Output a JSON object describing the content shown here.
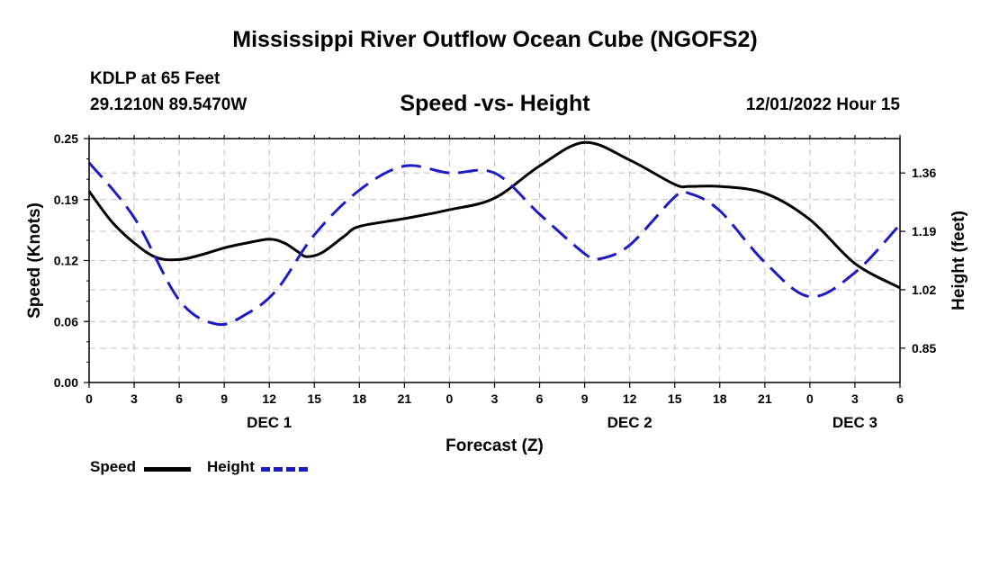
{
  "header": {
    "title": "Mississippi River Outflow Ocean Cube (NGOFS2)",
    "station": "KDLP at 65 Feet",
    "coords": "29.1210N  89.5470W",
    "subtitle": "Speed -vs- Height",
    "datetime": "12/01/2022 Hour 15"
  },
  "footer": {
    "title": "Mississippi River Outflow Ocean Cube (NGOFS2)"
  },
  "legend": {
    "speed_label": "Speed",
    "height_label": "Height"
  },
  "chart_data": {
    "type": "line",
    "xlabel": "Forecast (Z)",
    "ylabel_left": "Speed (Knots)",
    "ylabel_right": "Height (feet)",
    "x_hours": [
      0,
      54
    ],
    "x_ticks": [
      {
        "h": 0,
        "label": "0"
      },
      {
        "h": 3,
        "label": "3"
      },
      {
        "h": 6,
        "label": "6"
      },
      {
        "h": 9,
        "label": "9"
      },
      {
        "h": 12,
        "label": "12"
      },
      {
        "h": 15,
        "label": "15"
      },
      {
        "h": 18,
        "label": "18"
      },
      {
        "h": 21,
        "label": "21"
      },
      {
        "h": 24,
        "label": "0"
      },
      {
        "h": 27,
        "label": "3"
      },
      {
        "h": 30,
        "label": "6"
      },
      {
        "h": 33,
        "label": "9"
      },
      {
        "h": 36,
        "label": "12"
      },
      {
        "h": 39,
        "label": "15"
      },
      {
        "h": 42,
        "label": "18"
      },
      {
        "h": 45,
        "label": "21"
      },
      {
        "h": 48,
        "label": "0"
      },
      {
        "h": 51,
        "label": "3"
      },
      {
        "h": 54,
        "label": "6"
      }
    ],
    "date_labels": [
      {
        "h": 12,
        "label": "DEC 1"
      },
      {
        "h": 36,
        "label": "DEC 2"
      },
      {
        "h": 51,
        "label": "DEC 3"
      }
    ],
    "ylim_left": [
      0,
      0.25
    ],
    "ylim_right": [
      0.75,
      1.46
    ],
    "left_ticks": [
      {
        "v": 0.0,
        "label": "0.00"
      },
      {
        "v": 0.0625,
        "label": "0.06"
      },
      {
        "v": 0.125,
        "label": "0.12"
      },
      {
        "v": 0.1875,
        "label": "0.19"
      },
      {
        "v": 0.25,
        "label": "0.25"
      }
    ],
    "right_ticks": [
      {
        "v": 0.85,
        "label": "0.85"
      },
      {
        "v": 1.02,
        "label": "1.02"
      },
      {
        "v": 1.19,
        "label": "1.19"
      },
      {
        "v": 1.36,
        "label": "1.36"
      }
    ],
    "series": [
      {
        "name": "Speed",
        "axis": "left",
        "color": "#000000",
        "dash": "solid",
        "x": [
          0,
          1.5,
          3,
          4.5,
          6,
          7.5,
          9,
          10.5,
          12,
          13,
          14,
          14.5,
          15.5,
          17,
          18,
          21,
          24,
          27,
          30,
          33,
          36,
          39,
          40,
          42,
          45,
          48,
          51,
          54
        ],
        "y": [
          0.196,
          0.165,
          0.143,
          0.128,
          0.126,
          0.131,
          0.138,
          0.143,
          0.147,
          0.143,
          0.133,
          0.129,
          0.133,
          0.15,
          0.16,
          0.168,
          0.177,
          0.189,
          0.222,
          0.246,
          0.228,
          0.203,
          0.201,
          0.201,
          0.194,
          0.167,
          0.122,
          0.097
        ]
      },
      {
        "name": "Height",
        "axis": "right",
        "color": "#1c1cc2",
        "dash": "dashed",
        "x": [
          0,
          3,
          6,
          8.5,
          10.5,
          12.5,
          15,
          18,
          21,
          24,
          27,
          30,
          33,
          34,
          36,
          39,
          40,
          42,
          45,
          48,
          51,
          54
        ],
        "y": [
          1.39,
          1.23,
          0.99,
          0.92,
          0.95,
          1.02,
          1.18,
          1.31,
          1.38,
          1.36,
          1.36,
          1.24,
          1.125,
          1.11,
          1.15,
          1.29,
          1.3,
          1.25,
          1.1,
          1.0,
          1.07,
          1.21
        ]
      }
    ]
  }
}
